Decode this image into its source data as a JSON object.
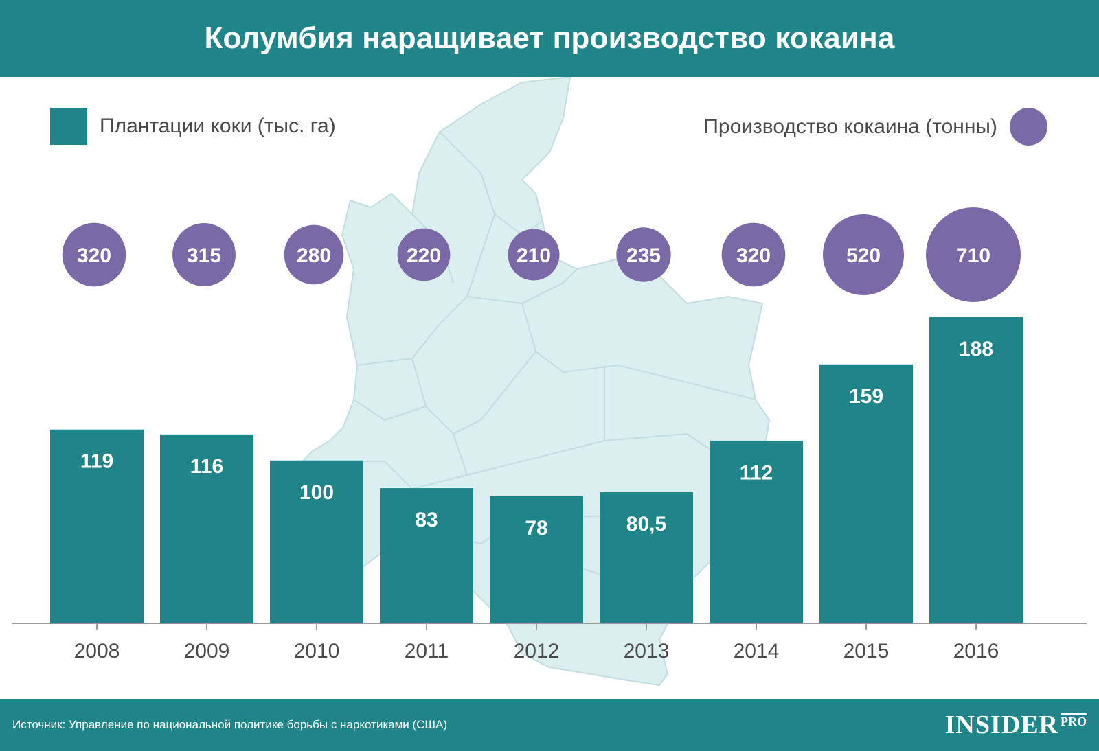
{
  "title": "Колумбия наращивает производство кокаина",
  "legend": {
    "bars_label": "Плантации коки (тыс. га)",
    "bubbles_label": "Производство кокаина (тонны)"
  },
  "colors": {
    "header": "#1f8588",
    "bars": "#1f8588",
    "bubbles": "#7b68a6",
    "map": "#dbeff1",
    "map_stroke": "#c2dde0"
  },
  "footer": {
    "source": "Источник: Управление по национальной политике борьбы с наркотиками (США)",
    "logo_main": "INSIDER",
    "logo_pro": "PRO"
  },
  "chart_data": {
    "type": "bar",
    "categories": [
      "2008",
      "2009",
      "2010",
      "2011",
      "2012",
      "2013",
      "2014",
      "2015",
      "2016"
    ],
    "series": [
      {
        "name": "Плантации коки (тыс. га)",
        "values": [
          119,
          116,
          100,
          83,
          78,
          80.5,
          112,
          159,
          188
        ],
        "labels": [
          "119",
          "116",
          "100",
          "83",
          "78",
          "80,5",
          "112",
          "159",
          "188"
        ]
      },
      {
        "name": "Производство кокаина (тонны)",
        "values": [
          320,
          315,
          280,
          220,
          210,
          235,
          320,
          520,
          710
        ],
        "labels": [
          "320",
          "315",
          "280",
          "220",
          "210",
          "235",
          "320",
          "520",
          "710"
        ]
      }
    ],
    "ylim": [
      0,
      188
    ],
    "grid": false,
    "legend_position": "top"
  }
}
